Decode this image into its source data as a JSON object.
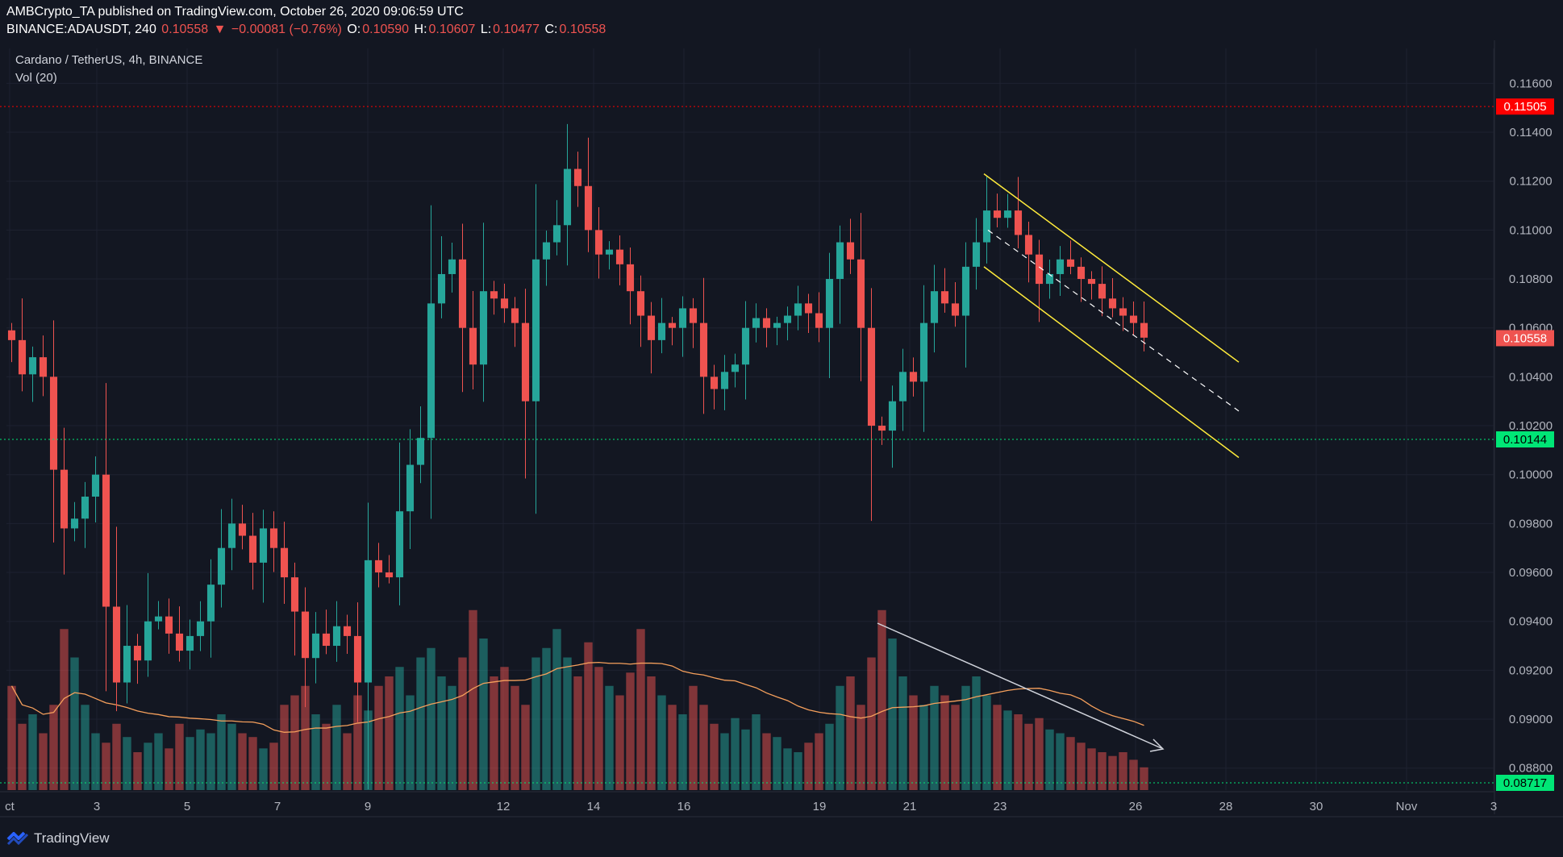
{
  "header": {
    "line1": "AMBCrypto_TA published on TradingView.com, October 26, 2020 09:06:59 UTC",
    "symbol": "BINANCE:ADAUSDT, 240",
    "price": "0.10558",
    "change_arrow": "▼",
    "change": "−0.00081 (−0.76%)",
    "o_label": "O:",
    "o_value": "0.10590",
    "h_label": "H:",
    "h_value": "0.10607",
    "l_label": "L:",
    "l_value": "0.10477",
    "c_label": "C:",
    "c_value": "0.10558"
  },
  "legend": {
    "title": "Cardano / TetherUS, 4h, BINANCE",
    "volume": "Vol (20)"
  },
  "footer": {
    "brand": "TradingView",
    "logo": "tradingview-logo-icon"
  },
  "colors": {
    "background": "#131722",
    "up": "#26a69a",
    "down": "#ef5350",
    "channel": "#ffeb3b",
    "trend": "#d1d4dc",
    "ma": "#f6a05c",
    "resistance": "#ff0000",
    "support": "#00e676"
  },
  "chart_data": {
    "type": "candlestick",
    "title": "Cardano / TetherUS, 4h, BINANCE",
    "x_ticks": [
      "ct",
      "3",
      "5",
      "7",
      "9",
      "12",
      "14",
      "16",
      "19",
      "21",
      "23",
      "26",
      "28",
      "30",
      "Nov",
      "3"
    ],
    "y_ticks": [
      "0.11600",
      "0.11400",
      "0.11200",
      "0.11000",
      "0.10800",
      "0.10600",
      "0.10400",
      "0.10200",
      "0.10000",
      "0.09800",
      "0.09600",
      "0.09400",
      "0.09200",
      "0.09000",
      "0.08800"
    ],
    "ylim": [
      0.0871,
      0.1171
    ],
    "price_labels": [
      {
        "value": "0.11505",
        "kind": "resistance"
      },
      {
        "value": "0.10558",
        "kind": "last"
      },
      {
        "value": "0.10144",
        "kind": "support"
      },
      {
        "value": "0.08717",
        "kind": "volume-base"
      }
    ],
    "price_path": [
      0.1055,
      0.1041,
      0.1048,
      0.104,
      0.1002,
      0.0978,
      0.0982,
      0.0991,
      0.1,
      0.0946,
      0.0915,
      0.093,
      0.0924,
      0.094,
      0.0942,
      0.0935,
      0.0928,
      0.0934,
      0.094,
      0.0955,
      0.097,
      0.098,
      0.0975,
      0.0964,
      0.0978,
      0.097,
      0.0958,
      0.0944,
      0.0925,
      0.0935,
      0.093,
      0.0938,
      0.0934,
      0.0915,
      0.0965,
      0.096,
      0.0958,
      0.0985,
      0.1004,
      0.1015,
      0.107,
      0.1082,
      0.1088,
      0.106,
      0.1045,
      0.1075,
      0.1072,
      0.1068,
      0.1062,
      0.103,
      0.1088,
      0.1095,
      0.1102,
      0.1125,
      0.1118,
      0.11,
      0.109,
      0.1092,
      0.1086,
      0.1075,
      0.1065,
      0.1055,
      0.1062,
      0.106,
      0.1068,
      0.1062,
      0.104,
      0.1035,
      0.1042,
      0.1045,
      0.106,
      0.1064,
      0.106,
      0.1062,
      0.1065,
      0.107,
      0.1066,
      0.106,
      0.108,
      0.1095,
      0.1088,
      0.106,
      0.102,
      0.1018,
      0.103,
      0.1042,
      0.1038,
      0.1062,
      0.1075,
      0.107,
      0.1065,
      0.1085,
      0.1095,
      0.1108,
      0.1105,
      0.1108,
      0.1098,
      0.109,
      0.1078,
      0.1082,
      0.1088,
      0.1085,
      0.108,
      0.1078,
      0.1072,
      0.1068,
      0.1065,
      0.1062,
      0.1056
    ],
    "volume_relative": [
      0.55,
      0.35,
      0.4,
      0.3,
      0.45,
      0.85,
      0.7,
      0.45,
      0.3,
      0.25,
      0.35,
      0.28,
      0.2,
      0.25,
      0.3,
      0.22,
      0.35,
      0.28,
      0.32,
      0.3,
      0.4,
      0.35,
      0.3,
      0.28,
      0.22,
      0.25,
      0.45,
      0.5,
      0.55,
      0.4,
      0.35,
      0.45,
      0.3,
      0.5,
      0.42,
      0.55,
      0.6,
      0.65,
      0.5,
      0.7,
      0.75,
      0.6,
      0.55,
      0.7,
      0.95,
      0.8,
      0.6,
      0.65,
      0.55,
      0.45,
      0.7,
      0.75,
      0.85,
      0.7,
      0.6,
      0.78,
      0.65,
      0.55,
      0.5,
      0.62,
      0.85,
      0.6,
      0.5,
      0.45,
      0.4,
      0.55,
      0.45,
      0.35,
      0.3,
      0.38,
      0.32,
      0.4,
      0.3,
      0.28,
      0.22,
      0.2,
      0.25,
      0.3,
      0.35,
      0.55,
      0.6,
      0.45,
      0.7,
      0.95,
      0.8,
      0.6,
      0.5,
      0.45,
      0.55,
      0.5,
      0.45,
      0.55,
      0.6,
      0.5,
      0.45,
      0.42,
      0.4,
      0.35,
      0.38,
      0.32,
      0.3,
      0.28,
      0.25,
      0.22,
      0.2,
      0.18,
      0.2,
      0.16,
      0.12
    ],
    "annotations": [
      {
        "kind": "descending-channel",
        "note": "yellow parallel channel from Oct 23 projected to Oct 28"
      },
      {
        "kind": "volume-downtrend",
        "note": "white arrow over volume from Oct 20 to Oct 26"
      }
    ],
    "grid": true
  }
}
